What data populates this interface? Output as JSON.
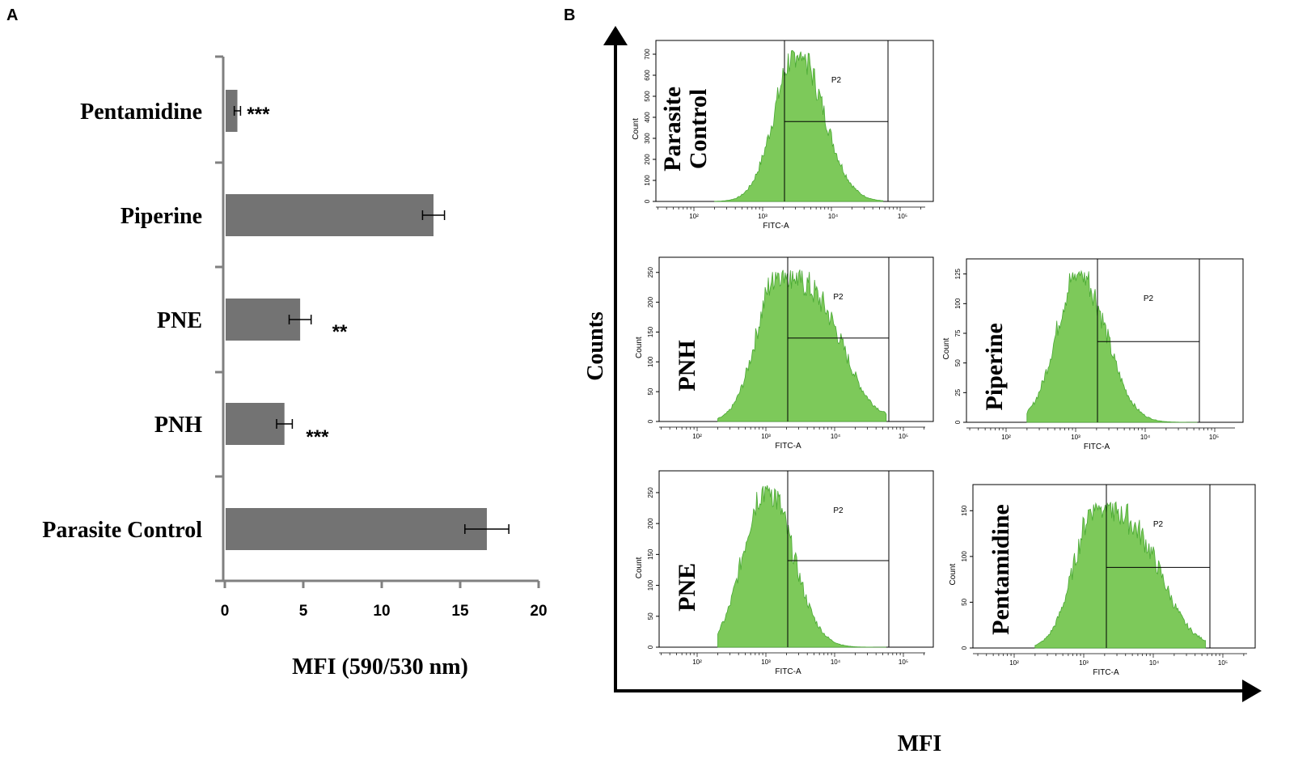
{
  "figure": {
    "panel_a_label": "A",
    "panel_b_label": "B"
  },
  "colors": {
    "bar": "#737373",
    "axis": "#808080",
    "hist_fill": "#7dc95a",
    "hist_edge": "#4aa934"
  },
  "chart_data": [
    {
      "type": "bar",
      "orientation": "horizontal",
      "categories": [
        "Pentamidine",
        "Piperine",
        "PNE",
        "PNH",
        "Parasite Control"
      ],
      "values": [
        0.8,
        13.3,
        4.8,
        3.8,
        16.7
      ],
      "errors": [
        0.2,
        0.7,
        0.7,
        0.5,
        1.4
      ],
      "significance": [
        "***",
        "",
        "**",
        "***",
        ""
      ],
      "xlim": [
        0,
        20
      ],
      "xticks": [
        "0",
        "5",
        "10",
        "15",
        "20"
      ],
      "xlabel": "MFI (590/530 nm)",
      "ylabel": ""
    },
    {
      "type": "histogram-panel",
      "xlabel": "MFI",
      "ylabel": "Counts",
      "plots": [
        {
          "name": "Parasite Control",
          "name_lines": [
            "Parasite",
            "Control"
          ],
          "yticks": [
            "0",
            "100",
            "200",
            "300",
            "400",
            "500",
            "600",
            "700"
          ],
          "ymax": 750,
          "xaxis_label": "FITC-A",
          "yaxis_label": "Count",
          "gate_label": "P2",
          "decade_labels": [
            "10²",
            "10³",
            "10⁴",
            "10⁵"
          ],
          "peak_log": 3.5,
          "peak_count": 720,
          "gate_level": 380
        },
        {
          "name": "PNH",
          "name_lines": [
            "PNH"
          ],
          "yticks": [
            "0",
            "50",
            "100",
            "150",
            "200",
            "250"
          ],
          "ymax": 270,
          "xaxis_label": "FITC-A",
          "yaxis_label": "Count",
          "gate_label": "P2",
          "decade_labels": [
            "10²",
            "10³",
            "10⁴",
            "10⁵"
          ],
          "peak_log": 3.2,
          "peak_count": 255,
          "gate_level": 140
        },
        {
          "name": "Piperine",
          "name_lines": [
            "Piperine"
          ],
          "yticks": [
            "0",
            "25",
            "50",
            "75",
            "100",
            "125"
          ],
          "ymax": 135,
          "xaxis_label": "FITC-A",
          "yaxis_label": "Count",
          "gate_label": "P2",
          "decade_labels": [
            "10²",
            "10³",
            "10⁴",
            "10⁵"
          ],
          "peak_log": 3.05,
          "peak_count": 128,
          "gate_level": 68
        },
        {
          "name": "PNE",
          "name_lines": [
            "PNE"
          ],
          "yticks": [
            "0",
            "50",
            "100",
            "150",
            "200",
            "250"
          ],
          "ymax": 280,
          "xaxis_label": "FITC-A",
          "yaxis_label": "Count",
          "gate_label": "P2",
          "decade_labels": [
            "10²",
            "10³",
            "10⁴",
            "10⁵"
          ],
          "peak_log": 3.0,
          "peak_count": 262,
          "gate_level": 140
        },
        {
          "name": "Pentamidine",
          "name_lines": [
            "Pentamidine"
          ],
          "yticks": [
            "0",
            "50",
            "100",
            "150"
          ],
          "ymax": 175,
          "xaxis_label": "FITC-A",
          "yaxis_label": "Count",
          "gate_label": "P2",
          "decade_labels": [
            "10²",
            "10³",
            "10⁴",
            "10⁵"
          ],
          "peak_log": 3.2,
          "peak_count": 160,
          "gate_level": 88
        }
      ]
    }
  ]
}
